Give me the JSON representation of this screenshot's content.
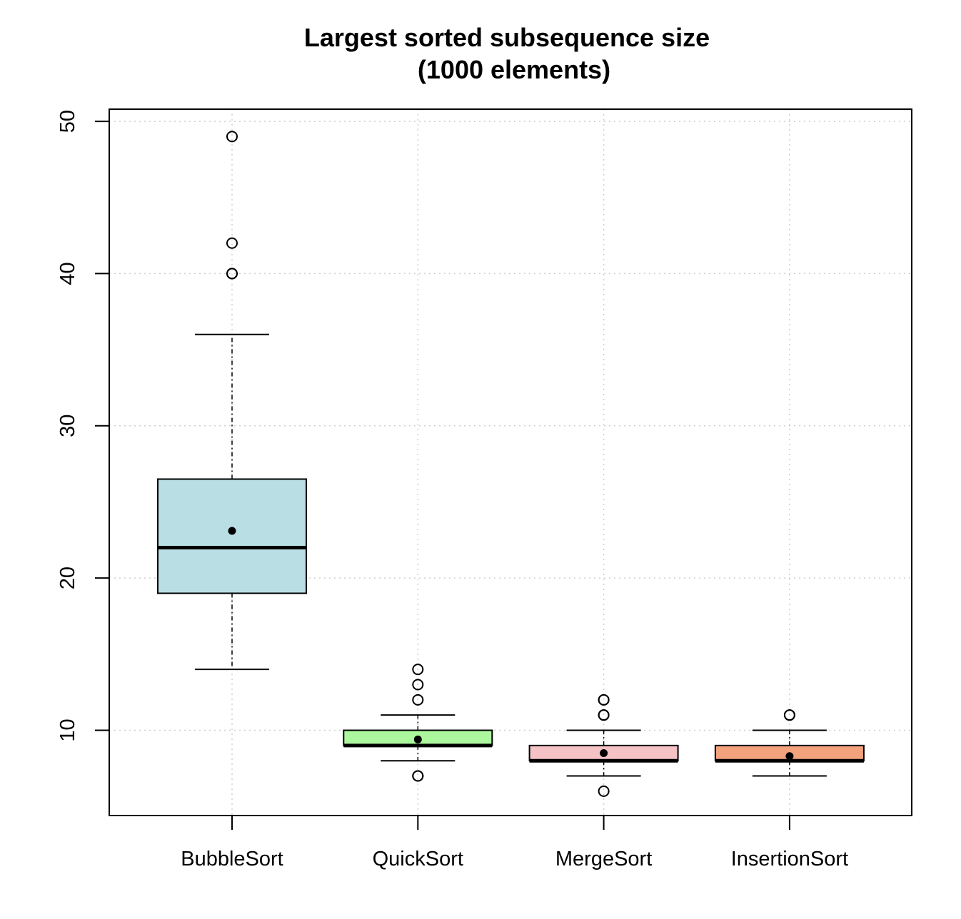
{
  "chart_data": {
    "type": "box",
    "title": "Largest sorted subsequence size",
    "subtitle": "(1000 elements)",
    "xlabel": "",
    "ylabel": "",
    "ylim": [
      4.4,
      50.8
    ],
    "yticks": [
      10,
      20,
      30,
      40,
      50
    ],
    "grid": true,
    "legend": "none",
    "categories": [
      "BubbleSort",
      "QuickSort",
      "MergeSort",
      "InsertionSort"
    ],
    "boxes": [
      {
        "category": "BubbleSort",
        "color": "#b9dfe5",
        "whisker_low": 14,
        "q1": 19,
        "median": 22,
        "q3": 26.5,
        "whisker_high": 36,
        "mean": 23.1,
        "outliers": [
          40,
          40,
          42,
          49
        ]
      },
      {
        "category": "QuickSort",
        "color": "#acf79d",
        "whisker_low": 8,
        "q1": 9,
        "median": 9,
        "q3": 10,
        "whisker_high": 11,
        "mean": 9.4,
        "outliers": [
          7,
          7,
          12,
          13,
          14
        ]
      },
      {
        "category": "MergeSort",
        "color": "#f5c2c6",
        "whisker_low": 7,
        "q1": 8,
        "median": 8,
        "q3": 9,
        "whisker_high": 10,
        "mean": 8.5,
        "outliers": [
          6,
          11,
          11,
          12,
          12
        ]
      },
      {
        "category": "InsertionSort",
        "color": "#f2a27d",
        "whisker_low": 7,
        "q1": 8,
        "median": 8,
        "q3": 9,
        "whisker_high": 10,
        "mean": 8.3,
        "outliers": [
          11,
          11
        ]
      }
    ]
  }
}
